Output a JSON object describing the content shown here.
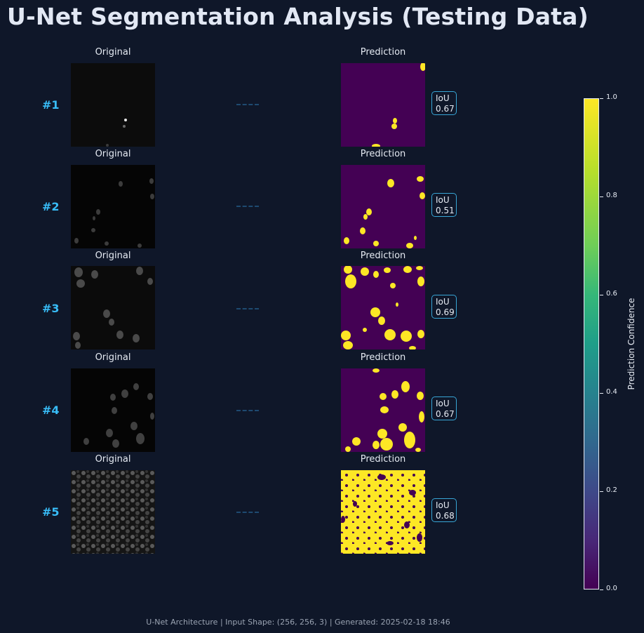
{
  "title": "U-Net Segmentation Analysis (Testing Data)",
  "footer": "U-Net Architecture | Input Shape: (256, 256, 3) | Generated: 2025-02-18 18:46",
  "labels": {
    "original": "Original",
    "prediction": "Prediction",
    "iou": "IoU"
  },
  "samples": [
    {
      "label": "#1",
      "iou": "0.67"
    },
    {
      "label": "#2",
      "iou": "0.51"
    },
    {
      "label": "#3",
      "iou": "0.69"
    },
    {
      "label": "#4",
      "iou": "0.67"
    },
    {
      "label": "#5",
      "iou": "0.68"
    }
  ],
  "colorbar": {
    "title": "Prediction Confidence",
    "ticks": [
      "0.0",
      "0.2",
      "0.4",
      "0.6",
      "0.8",
      "1.0"
    ],
    "colormap": "viridis",
    "low_color": "#440154",
    "high_color": "#fde725"
  },
  "colors": {
    "background": "#0f1729",
    "accent": "#38bdf8"
  }
}
